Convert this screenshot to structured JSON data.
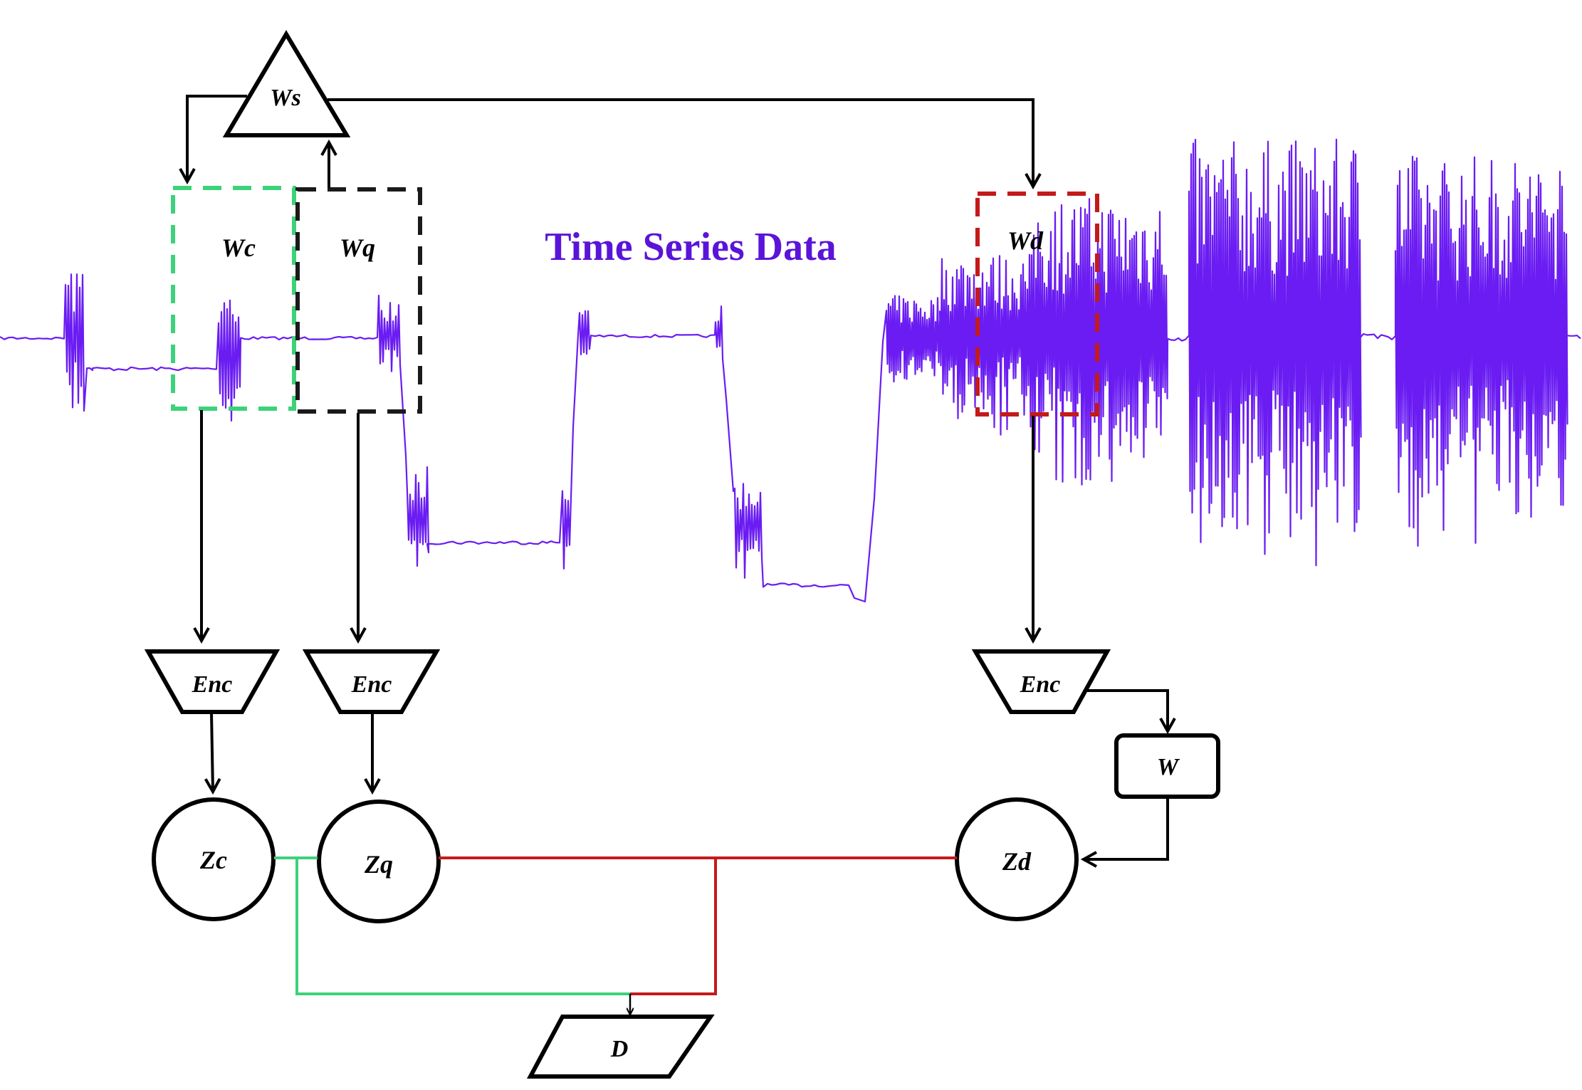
{
  "title": "Time Series Data",
  "windows": {
    "ws": "Ws",
    "wc": "Wc",
    "wq": "Wq",
    "wd": "Wd"
  },
  "encoders": {
    "enc_c": "Enc",
    "enc_q": "Enc",
    "enc_d": "Enc"
  },
  "weight_box": "W",
  "latents": {
    "zc": "Zc",
    "zq": "Zq",
    "zd": "Zd"
  },
  "discriminator": "D",
  "colors": {
    "signal": "#6a1cf2",
    "title": "#5a14d8",
    "context_window": "#3dd27a",
    "query_window": "#1a1a1a",
    "data_window": "#c41a1a",
    "green_link": "#3dd27a",
    "red_link": "#c41a1a",
    "arrows": "#000000"
  },
  "icons": {
    "arrowhead": "arrowhead-icon"
  }
}
